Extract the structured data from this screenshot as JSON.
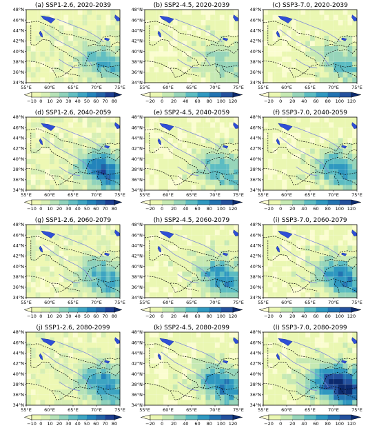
{
  "figure": {
    "rows": 4,
    "cols": 3,
    "map": {
      "lon_range": [
        55,
        75
      ],
      "lat_range": [
        34,
        48
      ],
      "lon_ticks": [
        "55°E",
        "60°E",
        "65°E",
        "70°E",
        "75°E"
      ],
      "lat_ticks": [
        "34°N",
        "36°N",
        "38°N",
        "40°N",
        "42°N",
        "44°N",
        "46°N",
        "48°N"
      ],
      "gridlines": true
    },
    "colorbars": [
      {
        "ticks": [
          "−10",
          "0",
          "10",
          "20",
          "30",
          "40",
          "50",
          "60",
          "70",
          "80"
        ],
        "colors": [
          "#fbfdd0",
          "#eef8b4",
          "#d7efb4",
          "#b6e2b7",
          "#8fd2bb",
          "#62bec2",
          "#3da4c2",
          "#2384bb",
          "#2263a8",
          "#1d3f93",
          "#0c2a6e"
        ],
        "extend": "both"
      },
      {
        "ticks": [
          "−20",
          "0",
          "20",
          "40",
          "60",
          "80",
          "100",
          "120"
        ],
        "colors": [
          "#fbfdd0",
          "#eaf7b2",
          "#c6e9b3",
          "#97d5ba",
          "#5cbcc2",
          "#2f98c0",
          "#2273b1",
          "#23509d",
          "#0c2a6e"
        ],
        "extend": "both"
      }
    ],
    "panels": [
      {
        "title": "(a) SSP1-2.6, 2020-2039",
        "scenario": "SSP1-2.6",
        "period": "2020-2039",
        "colorbar": 0,
        "intensity": 0.45
      },
      {
        "title": "(b) SSP2-4.5, 2020-2039",
        "scenario": "SSP2-4.5",
        "period": "2020-2039",
        "colorbar": 1,
        "intensity": 0.3
      },
      {
        "title": "(c) SSP3-7.0, 2020-2039",
        "scenario": "SSP3-7.0",
        "period": "2020-2039",
        "colorbar": 1,
        "intensity": 0.35
      },
      {
        "title": "(d) SSP1-2.6, 2040-2059",
        "scenario": "SSP1-2.6",
        "period": "2040-2059",
        "colorbar": 0,
        "intensity": 0.7
      },
      {
        "title": "(e) SSP2-4.5, 2040-2059",
        "scenario": "SSP2-4.5",
        "period": "2040-2059",
        "colorbar": 1,
        "intensity": 0.45
      },
      {
        "title": "(f) SSP3-7.0, 2040-2059",
        "scenario": "SSP3-7.0",
        "period": "2040-2059",
        "colorbar": 1,
        "intensity": 0.55
      },
      {
        "title": "(g) SSP1-2.6, 2060-2079",
        "scenario": "SSP1-2.6",
        "period": "2060-2079",
        "colorbar": 0,
        "intensity": 0.5
      },
      {
        "title": "(h) SSP2-4.5, 2060-2079",
        "scenario": "SSP2-4.5",
        "period": "2060-2079",
        "colorbar": 1,
        "intensity": 0.55
      },
      {
        "title": "(i) SSP3-7.0, 2060-2079",
        "scenario": "SSP3-7.0",
        "period": "2060-2079",
        "colorbar": 1,
        "intensity": 0.6
      },
      {
        "title": "(j) SSP1-2.6, 2080-2099",
        "scenario": "SSP1-2.6",
        "period": "2080-2099",
        "colorbar": 0,
        "intensity": 0.6
      },
      {
        "title": "(k) SSP2-4.5, 2080-2099",
        "scenario": "SSP2-4.5",
        "period": "2080-2099",
        "colorbar": 1,
        "intensity": 0.6
      },
      {
        "title": "(l) SSP3-7.0, 2080-2099",
        "scenario": "SSP3-7.0",
        "period": "2080-2099",
        "colorbar": 1,
        "intensity": 0.9
      }
    ]
  }
}
